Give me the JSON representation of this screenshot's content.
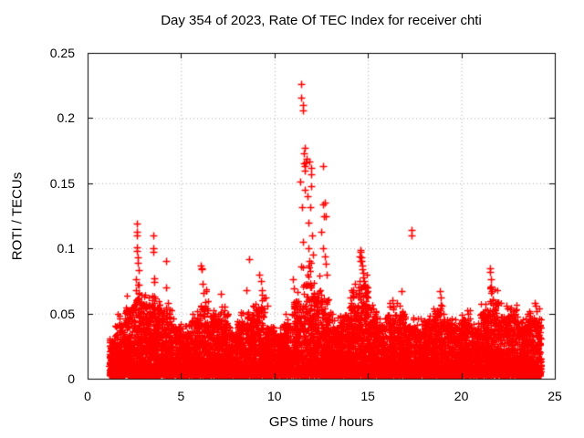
{
  "page": {
    "background": "#ffffff"
  },
  "chart_data": {
    "type": "scatter",
    "title": "Day 354 of 2023, Rate Of TEC Index for receiver chti",
    "xlabel": "GPS time / hours",
    "ylabel": "ROTI / TECUs",
    "xlim": [
      0,
      25
    ],
    "ylim": [
      0,
      0.25
    ],
    "xticks": [
      0,
      5,
      10,
      15,
      20,
      25
    ],
    "yticks": [
      0,
      0.05,
      0.1,
      0.15,
      0.2,
      0.25
    ],
    "xtick_labels": [
      "0",
      "5",
      "10",
      "15",
      "20",
      "25"
    ],
    "ytick_labels": [
      "0",
      "0.05",
      "0.1",
      "0.15",
      "0.2",
      "0.25"
    ],
    "grid": {
      "show": true,
      "style": "dotted",
      "color": "#a8a8a8"
    },
    "marker": {
      "shape": "plus",
      "color": "#ff0000",
      "size": 7
    },
    "axis_color": "#000000",
    "data_range_hours": [
      1.17,
      24.27
    ],
    "band": {
      "comment": "dense base band of points; bins are [hour_start, hour_end, envelope_top_TECU]",
      "floor": 0.003,
      "density_per_hour": 430,
      "power": 2.6,
      "bins": [
        [
          1.15,
          1.5,
          0.03
        ],
        [
          1.5,
          2.0,
          0.042
        ],
        [
          2.0,
          2.5,
          0.055
        ],
        [
          2.5,
          3.0,
          0.062
        ],
        [
          3.0,
          3.5,
          0.058
        ],
        [
          3.5,
          4.0,
          0.055
        ],
        [
          4.0,
          4.5,
          0.05
        ],
        [
          4.5,
          5.0,
          0.04
        ],
        [
          5.0,
          5.5,
          0.036
        ],
        [
          5.5,
          6.0,
          0.045
        ],
        [
          6.0,
          6.5,
          0.058
        ],
        [
          6.5,
          7.0,
          0.05
        ],
        [
          7.0,
          7.5,
          0.05
        ],
        [
          7.5,
          8.0,
          0.036
        ],
        [
          8.0,
          8.5,
          0.045
        ],
        [
          8.5,
          9.0,
          0.05
        ],
        [
          9.0,
          9.5,
          0.055
        ],
        [
          9.5,
          10.0,
          0.04
        ],
        [
          10.0,
          10.5,
          0.034
        ],
        [
          10.5,
          11.0,
          0.044
        ],
        [
          11.0,
          11.5,
          0.06
        ],
        [
          11.5,
          12.0,
          0.075
        ],
        [
          12.0,
          12.5,
          0.068
        ],
        [
          12.5,
          13.0,
          0.052
        ],
        [
          13.0,
          13.5,
          0.04
        ],
        [
          13.5,
          14.0,
          0.05
        ],
        [
          14.0,
          14.5,
          0.058
        ],
        [
          14.5,
          15.0,
          0.072
        ],
        [
          15.0,
          15.5,
          0.05
        ],
        [
          15.5,
          16.0,
          0.042
        ],
        [
          16.0,
          16.5,
          0.05
        ],
        [
          16.5,
          17.0,
          0.05
        ],
        [
          17.0,
          17.5,
          0.04
        ],
        [
          17.5,
          18.0,
          0.04
        ],
        [
          18.0,
          18.5,
          0.046
        ],
        [
          18.5,
          19.0,
          0.055
        ],
        [
          19.0,
          19.5,
          0.046
        ],
        [
          19.5,
          20.0,
          0.04
        ],
        [
          20.0,
          20.5,
          0.046
        ],
        [
          20.5,
          21.0,
          0.04
        ],
        [
          21.0,
          21.5,
          0.05
        ],
        [
          21.5,
          22.0,
          0.06
        ],
        [
          22.0,
          22.5,
          0.05
        ],
        [
          22.5,
          23.0,
          0.05
        ],
        [
          23.0,
          23.5,
          0.04
        ],
        [
          23.5,
          24.27,
          0.046
        ]
      ]
    },
    "outliers": [
      [
        2.58,
        0.068
      ],
      [
        2.6,
        0.076
      ],
      [
        2.62,
        0.119
      ],
      [
        2.63,
        0.113
      ],
      [
        2.64,
        0.11
      ],
      [
        2.65,
        0.101
      ],
      [
        2.66,
        0.098
      ],
      [
        2.67,
        0.093
      ],
      [
        2.69,
        0.089
      ],
      [
        2.71,
        0.083
      ],
      [
        2.73,
        0.072
      ],
      [
        2.75,
        0.066
      ],
      [
        2.9,
        0.058
      ],
      [
        3.05,
        0.057
      ],
      [
        3.3,
        0.056
      ],
      [
        3.45,
        0.06
      ],
      [
        3.5,
        0.11
      ],
      [
        3.52,
        0.1
      ],
      [
        3.53,
        0.097
      ],
      [
        3.55,
        0.077
      ],
      [
        3.56,
        0.074
      ],
      [
        3.58,
        0.063
      ],
      [
        4.18,
        0.09
      ],
      [
        4.22,
        0.07
      ],
      [
        4.3,
        0.058
      ],
      [
        6.05,
        0.087
      ],
      [
        6.08,
        0.085
      ],
      [
        6.1,
        0.084
      ],
      [
        6.17,
        0.073
      ],
      [
        6.22,
        0.066
      ],
      [
        6.28,
        0.059
      ],
      [
        7.15,
        0.065
      ],
      [
        7.3,
        0.055
      ],
      [
        8.5,
        0.068
      ],
      [
        8.64,
        0.092
      ],
      [
        9.2,
        0.08
      ],
      [
        9.28,
        0.075
      ],
      [
        9.35,
        0.068
      ],
      [
        9.5,
        0.062
      ],
      [
        9.6,
        0.056
      ],
      [
        11.0,
        0.076
      ],
      [
        11.05,
        0.069
      ],
      [
        11.37,
        0.151
      ],
      [
        11.42,
        0.226
      ],
      [
        11.42,
        0.216
      ],
      [
        11.45,
        0.086
      ],
      [
        11.48,
        0.132
      ],
      [
        11.5,
        0.21
      ],
      [
        11.5,
        0.206
      ],
      [
        11.54,
        0.105
      ],
      [
        11.56,
        0.173
      ],
      [
        11.58,
        0.165
      ],
      [
        11.61,
        0.177
      ],
      [
        11.61,
        0.145
      ],
      [
        11.62,
        0.163
      ],
      [
        11.64,
        0.16
      ],
      [
        11.66,
        0.166
      ],
      [
        11.7,
        0.169
      ],
      [
        11.75,
        0.14
      ],
      [
        11.8,
        0.1
      ],
      [
        11.82,
        0.12
      ],
      [
        11.85,
        0.09
      ],
      [
        11.88,
        0.167
      ],
      [
        11.9,
        0.132
      ],
      [
        11.94,
        0.148
      ],
      [
        11.97,
        0.162
      ],
      [
        11.97,
        0.157
      ],
      [
        12.0,
        0.11
      ],
      [
        12.05,
        0.095
      ],
      [
        12.51,
        0.113
      ],
      [
        12.59,
        0.163
      ],
      [
        12.6,
        0.134
      ],
      [
        12.62,
        0.1
      ],
      [
        12.64,
        0.125
      ],
      [
        12.68,
        0.094
      ],
      [
        12.7,
        0.135
      ],
      [
        12.72,
        0.088
      ],
      [
        12.74,
        0.125
      ],
      [
        12.78,
        0.08
      ],
      [
        13.08,
        0.05
      ],
      [
        14.05,
        0.062
      ],
      [
        14.13,
        0.058
      ],
      [
        14.22,
        0.068
      ],
      [
        14.3,
        0.073
      ],
      [
        14.35,
        0.065
      ],
      [
        14.55,
        0.094
      ],
      [
        14.58,
        0.09
      ],
      [
        14.6,
        0.099
      ],
      [
        14.62,
        0.097
      ],
      [
        14.64,
        0.093
      ],
      [
        14.66,
        0.09
      ],
      [
        14.68,
        0.087
      ],
      [
        14.7,
        0.084
      ],
      [
        14.73,
        0.081
      ],
      [
        14.76,
        0.078
      ],
      [
        14.79,
        0.075
      ],
      [
        14.82,
        0.072
      ],
      [
        14.85,
        0.069
      ],
      [
        14.88,
        0.066
      ],
      [
        14.92,
        0.063
      ],
      [
        16.3,
        0.06
      ],
      [
        16.55,
        0.058
      ],
      [
        16.8,
        0.067
      ],
      [
        17.33,
        0.114
      ],
      [
        17.33,
        0.11
      ],
      [
        18.85,
        0.067
      ],
      [
        18.9,
        0.062
      ],
      [
        18.95,
        0.056
      ],
      [
        19.02,
        0.05
      ],
      [
        20.35,
        0.05
      ],
      [
        21.55,
        0.085
      ],
      [
        21.55,
        0.082
      ],
      [
        21.58,
        0.076
      ],
      [
        21.6,
        0.071
      ],
      [
        21.63,
        0.067
      ],
      [
        21.66,
        0.061
      ],
      [
        22.4,
        0.056
      ],
      [
        22.62,
        0.053
      ],
      [
        22.8,
        0.052
      ],
      [
        23.95,
        0.058
      ],
      [
        23.97,
        0.056
      ],
      [
        24.0,
        0.052
      ]
    ]
  }
}
